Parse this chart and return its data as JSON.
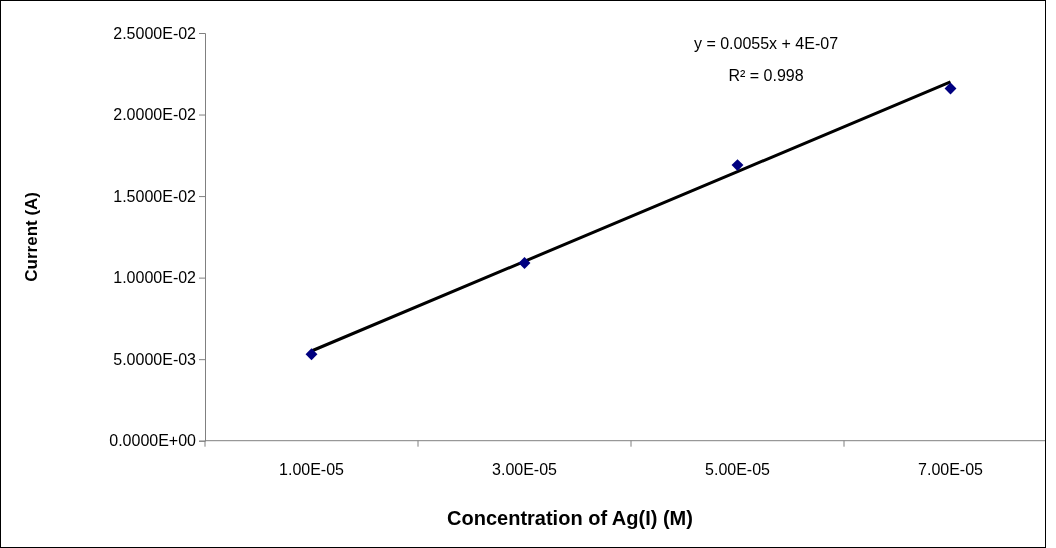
{
  "chart_data": {
    "type": "scatter",
    "xlabel": "Concentration of Ag(I) (M)",
    "ylabel": "Current (A)",
    "categories": [
      "1.00E-05",
      "3.00E-05",
      "5.00E-05",
      "7.00E-05"
    ],
    "ylim": [
      0,
      0.025
    ],
    "yticks": [
      {
        "value": 0,
        "label": "0.0000E+00"
      },
      {
        "value": 0.005,
        "label": "5.0000E-03"
      },
      {
        "value": 0.01,
        "label": "1.0000E-02"
      },
      {
        "value": 0.015,
        "label": "1.5000E-02"
      },
      {
        "value": 0.02,
        "label": "2.0000E-02"
      },
      {
        "value": 0.025,
        "label": "2.5000E-02"
      }
    ],
    "series": [
      {
        "color": "#000080",
        "marker": "diamond",
        "values": [
          0.0053,
          0.0109,
          0.0169,
          0.0216
        ]
      },
      {
        "type": "line",
        "color": "#000000",
        "marker": "none",
        "line_style": "solid",
        "values": [
          0.0055,
          0.011,
          0.0165,
          0.022
        ]
      }
    ],
    "annotations": [
      "y = 0.0055x + 4E-07",
      "R² = 0.998"
    ]
  }
}
